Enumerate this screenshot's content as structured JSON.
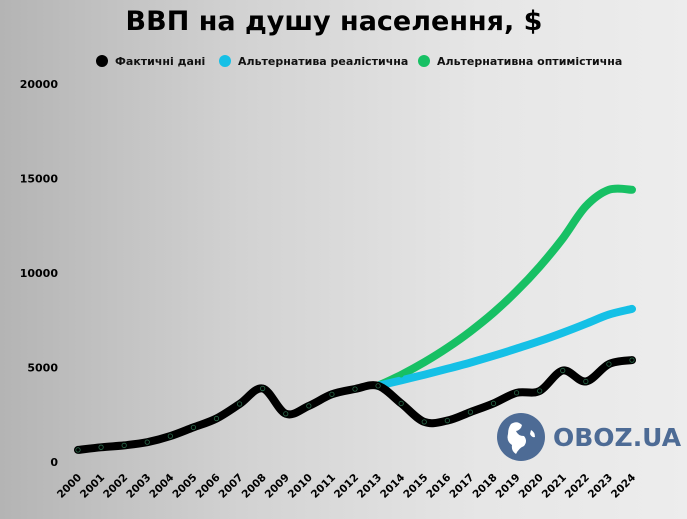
{
  "chart_data": {
    "type": "line",
    "title": "ВВП на душу населення, $",
    "xlabel": "",
    "ylabel": "",
    "ylim": [
      0,
      20000
    ],
    "yticks": [
      "0",
      "5000",
      "10000",
      "15000",
      "20000"
    ],
    "grid": false,
    "legend_position": "top",
    "x": [
      "2000",
      "2001",
      "2002",
      "2003",
      "2004",
      "2005",
      "2006",
      "2007",
      "2008",
      "2009",
      "2010",
      "2011",
      "2012",
      "2013",
      "2014",
      "2015",
      "2016",
      "2017",
      "2018",
      "2019",
      "2020",
      "2021",
      "2022",
      "2023",
      "2024"
    ],
    "series": [
      {
        "name": "Фактичні дані",
        "color": "#000000",
        "values": [
          640,
          780,
          880,
          1050,
          1370,
          1830,
          2300,
          3070,
          3890,
          2550,
          2970,
          3580,
          3860,
          4030,
          3100,
          2120,
          2190,
          2640,
          3100,
          3660,
          3760,
          4840,
          4260,
          5180,
          5390
        ]
      },
      {
        "name": "Альтернатива реалістична",
        "color": "#15c0e6",
        "values": [
          null,
          null,
          null,
          null,
          null,
          null,
          null,
          null,
          null,
          null,
          null,
          null,
          null,
          4030,
          4320,
          4620,
          4930,
          5260,
          5620,
          6000,
          6400,
          6840,
          7310,
          7800,
          8100
        ]
      },
      {
        "name": "Альтернативна оптимістична",
        "color": "#17c064",
        "values": [
          null,
          null,
          null,
          null,
          null,
          null,
          null,
          null,
          null,
          null,
          null,
          null,
          null,
          4030,
          4610,
          5280,
          6040,
          6910,
          7900,
          9040,
          10340,
          11830,
          13530,
          14400,
          14400
        ]
      }
    ]
  },
  "watermark": {
    "text": "OBOZ.UA",
    "icon": "globe-icon",
    "color": "#4d6b95"
  }
}
